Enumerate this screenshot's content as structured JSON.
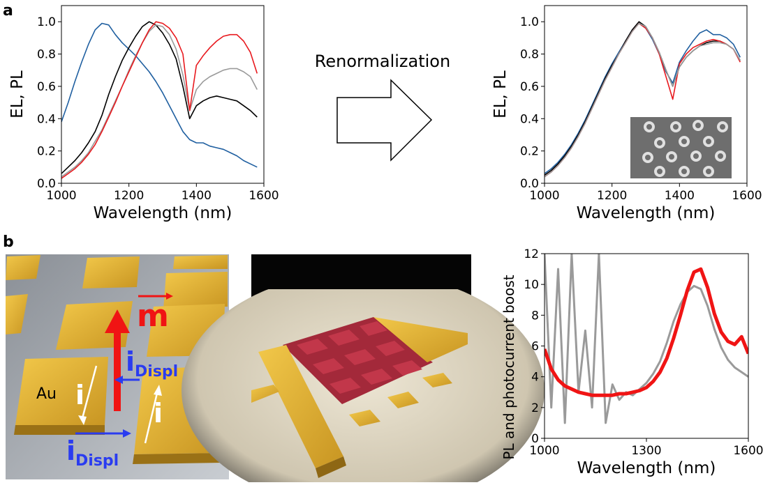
{
  "panel_labels": [
    "a",
    "b"
  ],
  "arrow_label": "Renormalization",
  "left_render": {
    "vector_label": "m",
    "current_labels": [
      "i",
      "i"
    ],
    "displacement_labels": [
      {
        "main": "i",
        "sub": "Displ"
      },
      {
        "main": "i",
        "sub": "Displ"
      }
    ],
    "material": "Au"
  },
  "chart_data": [
    {
      "type": "line",
      "xlabel": "Wavelength (nm)",
      "ylabel": "EL, PL",
      "xlim": [
        1000,
        1600
      ],
      "ylim": [
        0,
        1.1
      ],
      "xticks": [
        1000,
        1200,
        1400,
        1600
      ],
      "yticks": [
        {
          "value": 0,
          "label": "0.0"
        },
        0.2,
        0.4,
        0.6,
        0.8,
        {
          "value": 1,
          "label": "1.0"
        }
      ],
      "x": [
        1000,
        1020,
        1040,
        1060,
        1080,
        1100,
        1120,
        1140,
        1160,
        1180,
        1200,
        1220,
        1240,
        1260,
        1280,
        1300,
        1320,
        1340,
        1360,
        1380,
        1400,
        1420,
        1440,
        1460,
        1480,
        1500,
        1520,
        1540,
        1560,
        1580
      ],
      "series": [
        {
          "color": "#1f5fa0",
          "values": [
            0.38,
            0.5,
            0.63,
            0.75,
            0.86,
            0.95,
            0.99,
            0.98,
            0.92,
            0.87,
            0.83,
            0.79,
            0.74,
            0.69,
            0.63,
            0.56,
            0.48,
            0.4,
            0.32,
            0.27,
            0.25,
            0.25,
            0.23,
            0.22,
            0.21,
            0.19,
            0.17,
            0.14,
            0.12,
            0.1
          ]
        },
        {
          "color": "#000000",
          "values": [
            0.06,
            0.1,
            0.14,
            0.19,
            0.25,
            0.32,
            0.42,
            0.55,
            0.66,
            0.76,
            0.84,
            0.91,
            0.97,
            1.0,
            0.98,
            0.93,
            0.86,
            0.77,
            0.6,
            0.4,
            0.48,
            0.51,
            0.53,
            0.54,
            0.53,
            0.52,
            0.51,
            0.48,
            0.45,
            0.41
          ]
        },
        {
          "color": "#9a9a9a",
          "values": [
            0.04,
            0.07,
            0.1,
            0.14,
            0.19,
            0.26,
            0.33,
            0.42,
            0.51,
            0.6,
            0.7,
            0.79,
            0.87,
            0.94,
            0.98,
            0.97,
            0.92,
            0.83,
            0.67,
            0.45,
            0.58,
            0.63,
            0.66,
            0.68,
            0.7,
            0.71,
            0.71,
            0.69,
            0.66,
            0.58
          ]
        },
        {
          "color": "#e8191e",
          "values": [
            0.03,
            0.06,
            0.09,
            0.13,
            0.18,
            0.24,
            0.32,
            0.41,
            0.5,
            0.6,
            0.69,
            0.78,
            0.87,
            0.95,
            1.0,
            0.99,
            0.96,
            0.9,
            0.8,
            0.45,
            0.73,
            0.79,
            0.84,
            0.88,
            0.91,
            0.92,
            0.92,
            0.88,
            0.81,
            0.68
          ]
        }
      ]
    },
    {
      "type": "line",
      "xlabel": "Wavelength (nm)",
      "ylabel": "EL, PL",
      "xlim": [
        1000,
        1600
      ],
      "ylim": [
        0,
        1.1
      ],
      "xticks": [
        1000,
        1200,
        1400,
        1600
      ],
      "yticks": [
        {
          "value": 0,
          "label": "0.0"
        },
        0.2,
        0.4,
        0.6,
        0.8,
        {
          "value": 1,
          "label": "1.0"
        }
      ],
      "x": [
        1000,
        1020,
        1040,
        1060,
        1080,
        1100,
        1120,
        1140,
        1160,
        1180,
        1200,
        1220,
        1240,
        1260,
        1280,
        1300,
        1320,
        1340,
        1360,
        1380,
        1400,
        1420,
        1440,
        1460,
        1480,
        1500,
        1520,
        1540,
        1560,
        1580
      ],
      "series": [
        {
          "color": "#1f5fa0",
          "values": [
            0.06,
            0.09,
            0.13,
            0.18,
            0.24,
            0.31,
            0.39,
            0.48,
            0.57,
            0.66,
            0.74,
            0.81,
            0.88,
            0.95,
            0.99,
            0.96,
            0.89,
            0.8,
            0.69,
            0.62,
            0.75,
            0.82,
            0.88,
            0.93,
            0.95,
            0.92,
            0.92,
            0.9,
            0.86,
            0.78
          ]
        },
        {
          "color": "#000000",
          "values": [
            0.05,
            0.08,
            0.12,
            0.17,
            0.23,
            0.3,
            0.38,
            0.47,
            0.56,
            0.65,
            0.73,
            0.8,
            0.88,
            0.95,
            1.0,
            0.97,
            0.9,
            0.81,
            0.7,
            0.6,
            0.72,
            0.78,
            0.82,
            0.85,
            0.87,
            0.88,
            0.88,
            0.86,
            0.83,
            0.76
          ]
        },
        {
          "color": "#e8191e",
          "values": [
            0.04,
            0.07,
            0.11,
            0.16,
            0.22,
            0.29,
            0.37,
            0.46,
            0.55,
            0.64,
            0.72,
            0.8,
            0.87,
            0.94,
            0.99,
            0.96,
            0.9,
            0.8,
            0.66,
            0.52,
            0.74,
            0.8,
            0.84,
            0.86,
            0.88,
            0.89,
            0.88,
            0.86,
            0.83,
            0.75
          ]
        },
        {
          "color": "#9a9a9a",
          "values": [
            0.04,
            0.07,
            0.11,
            0.16,
            0.22,
            0.29,
            0.37,
            0.46,
            0.55,
            0.64,
            0.72,
            0.8,
            0.87,
            0.94,
            0.99,
            0.97,
            0.9,
            0.81,
            0.7,
            0.6,
            0.72,
            0.78,
            0.82,
            0.85,
            0.86,
            0.87,
            0.87,
            0.86,
            0.83,
            0.76
          ]
        }
      ]
    },
    {
      "type": "line",
      "xlabel": "Wavelength (nm)",
      "ylabel": "PL and photocurrent boost",
      "xlim": [
        1000,
        1600
      ],
      "ylim": [
        0,
        12
      ],
      "xticks": [
        1000,
        1300,
        1600
      ],
      "yticks": [
        0,
        2,
        4,
        6,
        8,
        10,
        12
      ],
      "x": [
        1000,
        1020,
        1040,
        1060,
        1080,
        1100,
        1120,
        1140,
        1160,
        1180,
        1200,
        1220,
        1240,
        1260,
        1280,
        1300,
        1320,
        1340,
        1360,
        1380,
        1400,
        1420,
        1440,
        1460,
        1480,
        1500,
        1520,
        1540,
        1560,
        1580,
        1600
      ],
      "series": [
        {
          "color": "#9a9a9a",
          "values": [
            12,
            2,
            11,
            1,
            12,
            3,
            7,
            2,
            12,
            1,
            3.5,
            2.5,
            3,
            2.8,
            3.2,
            3.6,
            4.2,
            5,
            6.2,
            7.6,
            8.7,
            9.5,
            9.9,
            9.7,
            8.6,
            7.1,
            5.9,
            5.1,
            4.6,
            4.3,
            4
          ]
        },
        {
          "color": "#f01414",
          "values": [
            5.8,
            4.5,
            3.8,
            3.4,
            3.2,
            3,
            2.9,
            2.8,
            2.8,
            2.8,
            2.8,
            2.9,
            2.9,
            3,
            3.1,
            3.3,
            3.7,
            4.3,
            5.2,
            6.5,
            8,
            9.6,
            10.8,
            11,
            9.8,
            8.1,
            6.9,
            6.3,
            6.1,
            6.6,
            5.5
          ]
        }
      ]
    }
  ]
}
